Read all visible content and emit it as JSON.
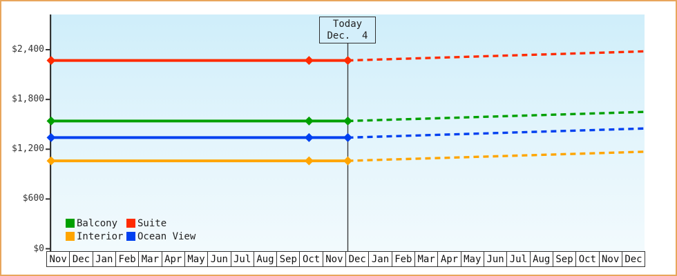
{
  "frame": {
    "border_color": "#e8a65c",
    "background": "#ffffff",
    "plot_gradient_top": "#cfeefa",
    "plot_gradient_bottom": "#f2fafd",
    "axis_color": "#333333",
    "text_color": "#222222"
  },
  "today_box": {
    "line1": "Today",
    "line2": "Dec.  4"
  },
  "legend": {
    "items": [
      {
        "label": "Balcony",
        "color": "#00a000"
      },
      {
        "label": "Suite",
        "color": "#ff2b00"
      },
      {
        "label": "Interior",
        "color": "#ffa500"
      },
      {
        "label": "Ocean View",
        "color": "#0040f0"
      }
    ]
  },
  "chart_data": {
    "type": "line",
    "x_categories": [
      "Nov",
      "Dec",
      "Jan",
      "Feb",
      "Mar",
      "Apr",
      "May",
      "Jun",
      "Jul",
      "Aug",
      "Sep",
      "Oct",
      "Nov",
      "Dec",
      "Jan",
      "Feb",
      "Mar",
      "Apr",
      "May",
      "Jun",
      "Jul",
      "Aug",
      "Sep",
      "Oct",
      "Nov",
      "Dec"
    ],
    "yticks": [
      {
        "value": 0,
        "label": "$0"
      },
      {
        "value": 600,
        "label": "$600"
      },
      {
        "value": 1200,
        "label": "$1,200"
      },
      {
        "value": 1800,
        "label": "$1,800"
      },
      {
        "value": 2400,
        "label": "$2,400"
      }
    ],
    "ylim": [
      0,
      2820
    ],
    "grid": false,
    "legend_position": "bottom-left",
    "today": {
      "month_index": 13,
      "label_line1": "Today",
      "label_line2": "Dec.  4"
    },
    "series": [
      {
        "name": "Suite",
        "color": "#ff2b00",
        "history": {
          "x_months": [
            0,
            11.3,
            13
          ],
          "values": [
            2270,
            2270,
            2270
          ]
        },
        "forecast": {
          "x_months": [
            13,
            26
          ],
          "values": [
            2270,
            2380
          ]
        }
      },
      {
        "name": "Balcony",
        "color": "#00a000",
        "history": {
          "x_months": [
            0,
            11.3,
            13
          ],
          "values": [
            1540,
            1540,
            1540
          ]
        },
        "forecast": {
          "x_months": [
            13,
            26
          ],
          "values": [
            1540,
            1650
          ]
        }
      },
      {
        "name": "Ocean View",
        "color": "#0040f0",
        "history": {
          "x_months": [
            0,
            11.3,
            13
          ],
          "values": [
            1340,
            1340,
            1340
          ]
        },
        "forecast": {
          "x_months": [
            13,
            26
          ],
          "values": [
            1340,
            1450
          ]
        }
      },
      {
        "name": "Interior",
        "color": "#ffa500",
        "history": {
          "x_months": [
            0,
            11.3,
            13
          ],
          "values": [
            1060,
            1060,
            1060
          ]
        },
        "forecast": {
          "x_months": [
            13,
            26
          ],
          "values": [
            1060,
            1170
          ]
        }
      }
    ]
  }
}
